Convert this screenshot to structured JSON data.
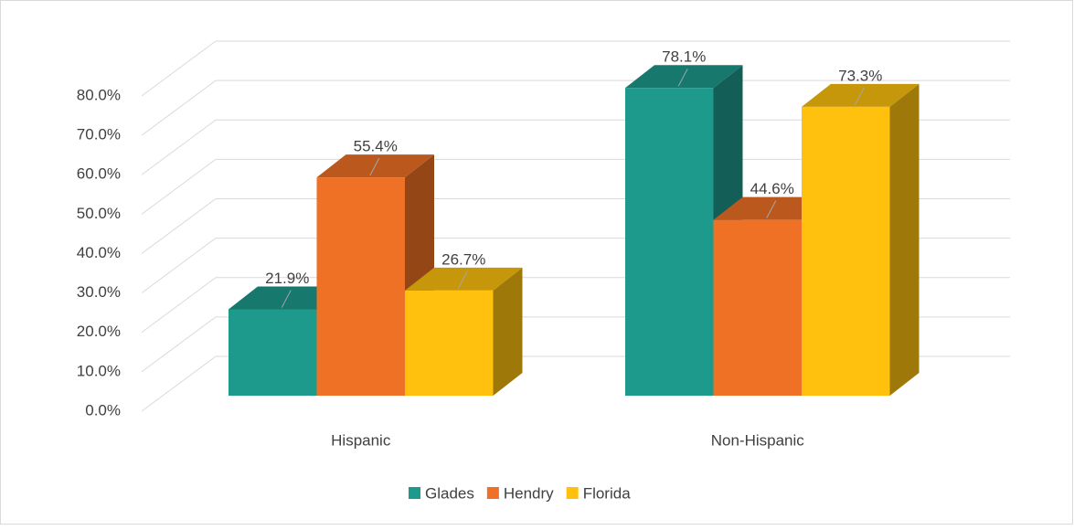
{
  "chart_data": {
    "type": "bar3d",
    "categories": [
      "Hispanic",
      "Non-Hispanic"
    ],
    "series": [
      {
        "name": "Glades",
        "color": "#1e9a8c",
        "values": [
          21.9,
          78.1
        ],
        "value_labels": [
          "21.9%",
          "78.1%"
        ]
      },
      {
        "name": "Hendry",
        "color": "#ef7125",
        "values": [
          55.4,
          44.6
        ],
        "value_labels": [
          "55.4%",
          "44.6%"
        ]
      },
      {
        "name": "Florida",
        "color": "#ffc10e",
        "values": [
          26.7,
          73.3
        ],
        "value_labels": [
          "26.7%",
          "73.3%"
        ]
      }
    ],
    "ylim": [
      0,
      80
    ],
    "yticks": [
      {
        "value": 0,
        "label": "0.0%"
      },
      {
        "value": 10,
        "label": "10.0%"
      },
      {
        "value": 20,
        "label": "20.0%"
      },
      {
        "value": 30,
        "label": "30.0%"
      },
      {
        "value": 40,
        "label": "40.0%"
      },
      {
        "value": 50,
        "label": "50.0%"
      },
      {
        "value": 60,
        "label": "60.0%"
      },
      {
        "value": 70,
        "label": "70.0%"
      },
      {
        "value": 80,
        "label": "80.0%"
      }
    ],
    "grid": true,
    "legend": "bottom"
  }
}
